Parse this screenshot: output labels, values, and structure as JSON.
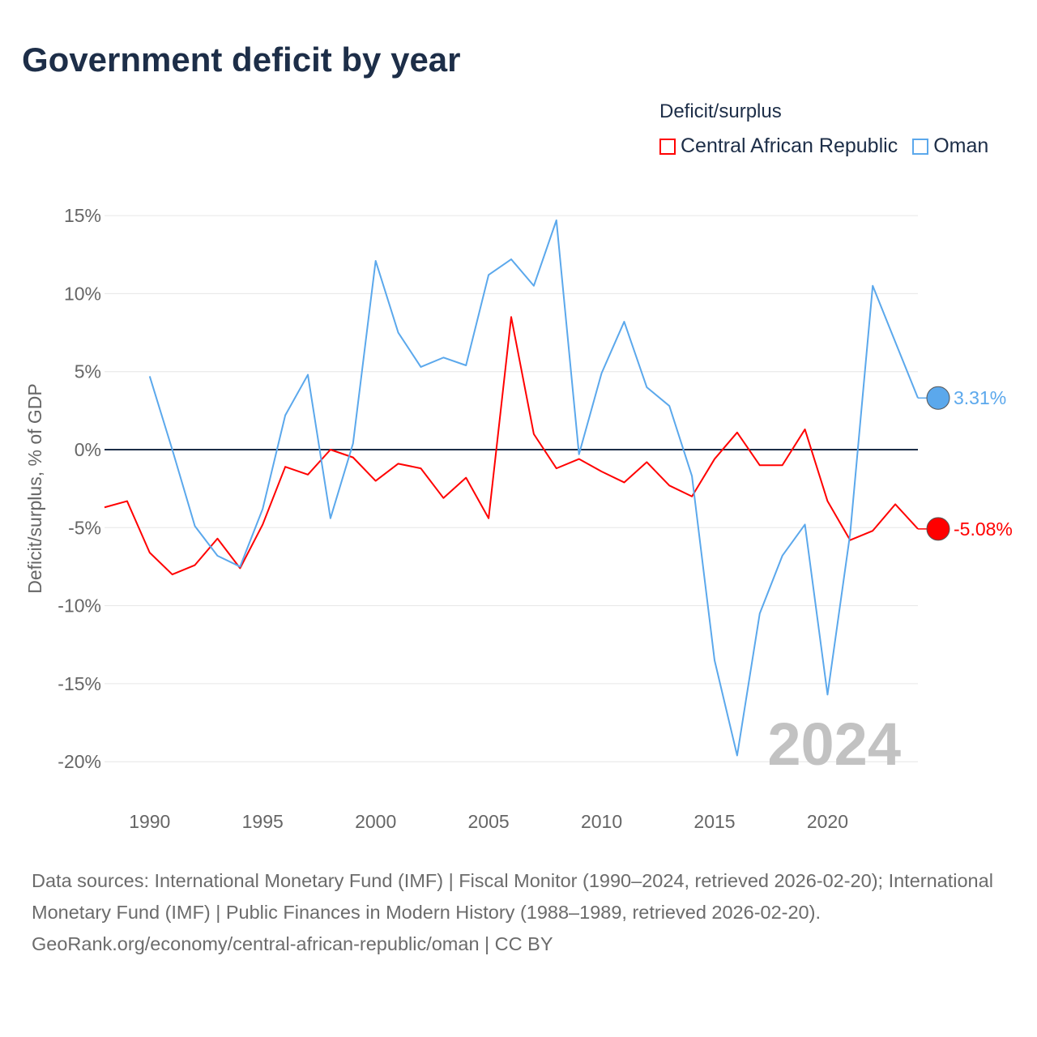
{
  "title": "Government deficit by year",
  "legend": {
    "title": "Deficit/surplus",
    "items": [
      {
        "label": "Central African Republic",
        "color": "#ff0000"
      },
      {
        "label": "Oman",
        "color": "#5ba8ec"
      }
    ]
  },
  "chart_data": {
    "type": "line",
    "title": "Government deficit by year",
    "ylabel": "Deficit/surplus, % of GDP",
    "xlabel": "",
    "ylim": [
      -20,
      15
    ],
    "xlim": [
      1988,
      2024
    ],
    "yticks": [
      15,
      10,
      5,
      0,
      -5,
      -10,
      -15,
      -20
    ],
    "ytick_labels": [
      "15%",
      "10%",
      "5%",
      "0%",
      "-5%",
      "-10%",
      "-15%",
      "-20%"
    ],
    "xticks": [
      1990,
      1995,
      2000,
      2005,
      2010,
      2015,
      2020
    ],
    "xtick_labels": [
      "1990",
      "1995",
      "2000",
      "2005",
      "2010",
      "2015",
      "2020"
    ],
    "grid": true,
    "year_label": "2024",
    "series": [
      {
        "name": "Central African Republic",
        "color": "#ff0000",
        "end_label": "-5.08%",
        "x": [
          1988,
          1989,
          1990,
          1991,
          1992,
          1993,
          1994,
          1995,
          1996,
          1997,
          1998,
          1999,
          2000,
          2001,
          2002,
          2003,
          2004,
          2005,
          2006,
          2007,
          2008,
          2009,
          2010,
          2011,
          2012,
          2013,
          2014,
          2015,
          2016,
          2017,
          2018,
          2019,
          2020,
          2021,
          2022,
          2023,
          2024
        ],
        "values": [
          -3.7,
          -3.3,
          -6.6,
          -8.0,
          -7.4,
          -5.7,
          -7.6,
          -4.8,
          -1.1,
          -1.6,
          0.0,
          -0.5,
          -2.0,
          -0.9,
          -1.2,
          -3.1,
          -1.8,
          -4.4,
          8.5,
          1.0,
          -1.2,
          -0.6,
          -1.4,
          -2.1,
          -0.8,
          -2.3,
          -3.0,
          -0.6,
          1.1,
          -1.0,
          -1.0,
          1.3,
          -3.3,
          -5.8,
          -5.2,
          -3.5,
          -5.08
        ]
      },
      {
        "name": "Oman",
        "color": "#5ba8ec",
        "end_label": "3.31%",
        "x": [
          1990,
          1991,
          1992,
          1993,
          1994,
          1995,
          1996,
          1997,
          1998,
          1999,
          2000,
          2001,
          2002,
          2003,
          2004,
          2005,
          2006,
          2007,
          2008,
          2009,
          2010,
          2011,
          2012,
          2013,
          2014,
          2015,
          2016,
          2017,
          2018,
          2019,
          2020,
          2021,
          2022,
          2023,
          2024
        ],
        "values": [
          4.7,
          0.0,
          -4.9,
          -6.8,
          -7.5,
          -3.8,
          2.2,
          4.8,
          -4.4,
          0.4,
          12.1,
          7.5,
          5.3,
          5.9,
          5.4,
          11.2,
          12.2,
          10.5,
          14.7,
          -0.3,
          4.9,
          8.2,
          4.0,
          2.8,
          -1.7,
          -13.5,
          -19.6,
          -10.5,
          -6.8,
          -4.8,
          -15.7,
          -5.4,
          10.5,
          6.9,
          3.31
        ]
      }
    ]
  },
  "footer": {
    "line1": "Data sources: International Monetary Fund (IMF) | Fiscal Monitor (1990–2024, retrieved 2026-02-20); International Monetary Fund (IMF) | Public Finances in Modern History (1988–1989, retrieved 2026-02-20).",
    "line2": "GeoRank.org/economy/central-african-republic/oman | CC BY"
  }
}
